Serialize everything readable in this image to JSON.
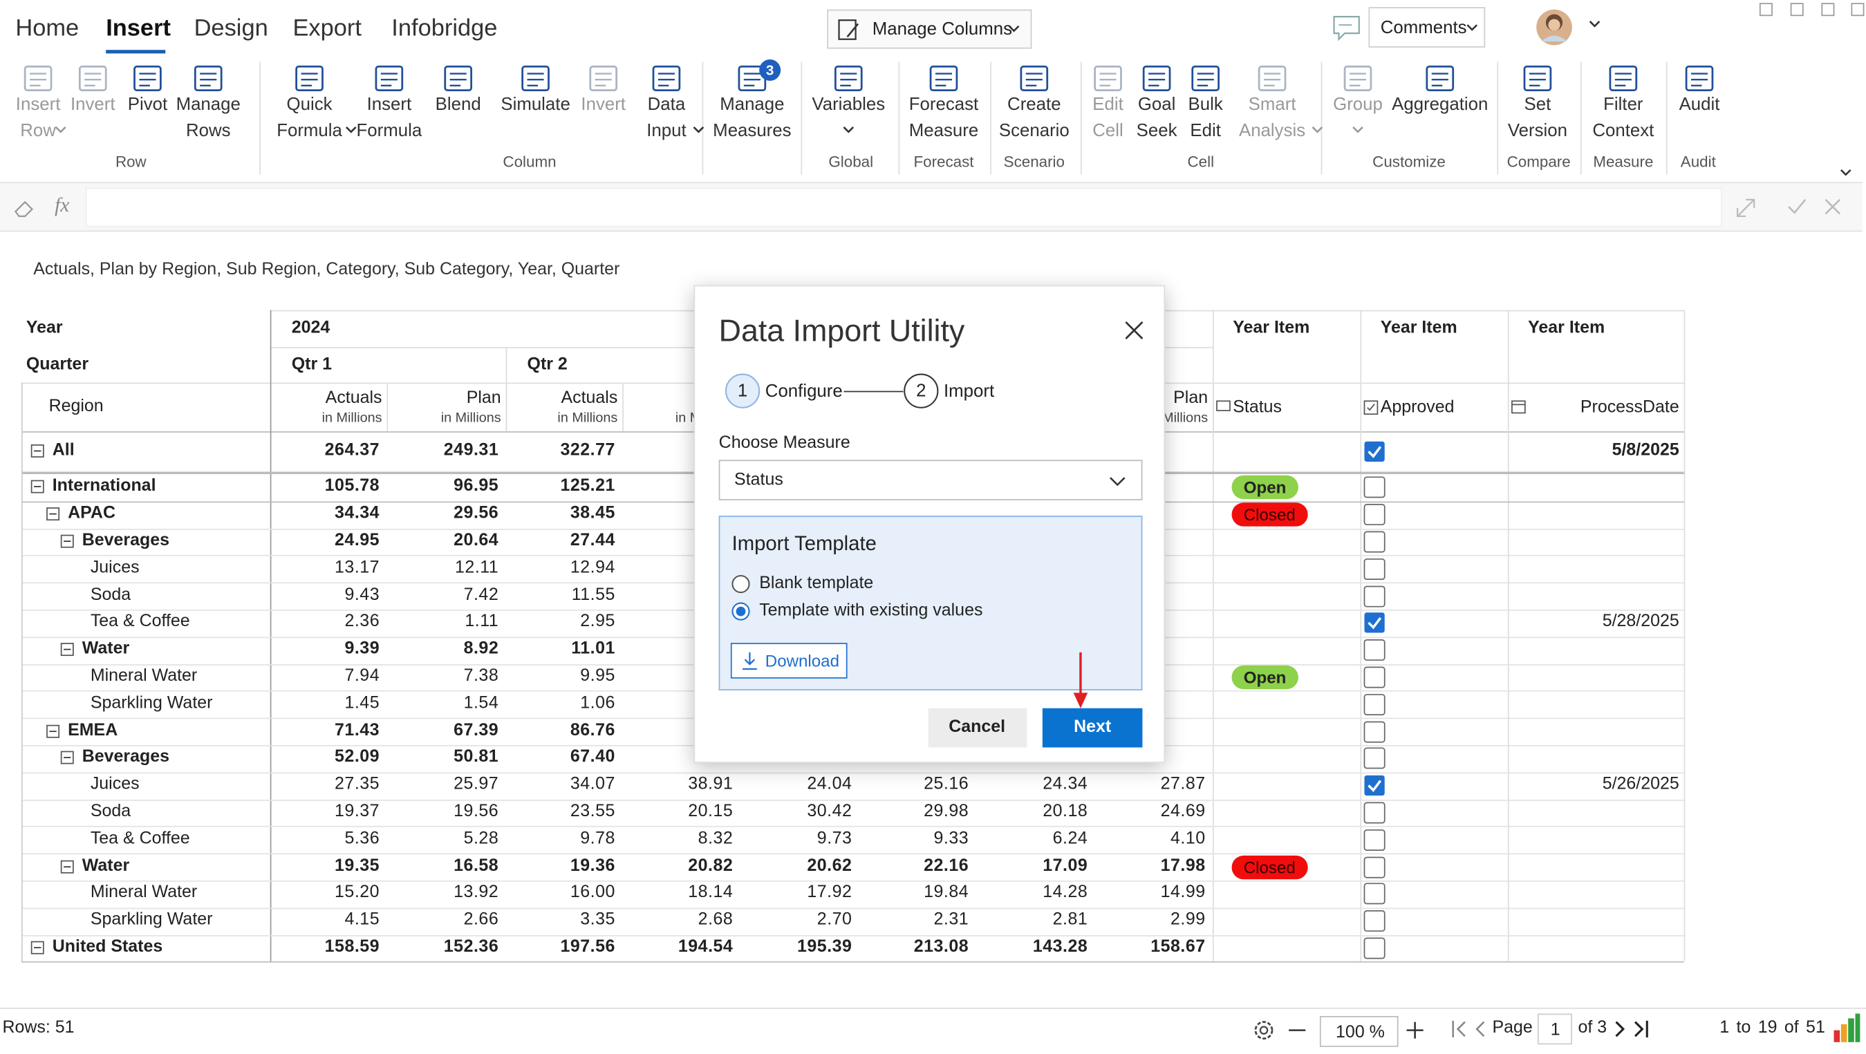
{
  "ribbon": {
    "tabs": [
      "Home",
      "Insert",
      "Design",
      "Export",
      "Infobridge"
    ],
    "active_tab": 1,
    "manage_columns": "Manage Columns",
    "comments": "Comments",
    "groups": [
      {
        "label": "Row",
        "buttons": [
          {
            "lines": [
              "Insert",
              "Row"
            ],
            "disabled": true,
            "dropdown": true
          },
          {
            "lines": [
              "Invert"
            ],
            "disabled": true
          },
          {
            "lines": [
              "Pivot"
            ]
          },
          {
            "lines": [
              "Manage",
              "Rows"
            ]
          }
        ]
      },
      {
        "label": "Column",
        "buttons": [
          {
            "lines": [
              "Quick",
              "Formula"
            ],
            "dropdown": true
          },
          {
            "lines": [
              "Insert",
              "Formula"
            ]
          },
          {
            "lines": [
              "Blend"
            ]
          },
          {
            "lines": [
              "Simulate"
            ]
          },
          {
            "lines": [
              "Invert"
            ],
            "disabled": true
          },
          {
            "lines": [
              "Data",
              "Input"
            ],
            "dropdown": true
          }
        ]
      },
      {
        "buttons": [
          {
            "lines": [
              "Manage",
              "Measures"
            ],
            "badge": "3"
          }
        ]
      },
      {
        "label": "Global",
        "buttons": [
          {
            "lines": [
              "Variables"
            ],
            "dropdown": true
          }
        ]
      },
      {
        "label": "Forecast",
        "buttons": [
          {
            "lines": [
              "Forecast",
              "Measure"
            ]
          }
        ]
      },
      {
        "label": "Scenario",
        "buttons": [
          {
            "lines": [
              "Create",
              "Scenario"
            ]
          }
        ]
      },
      {
        "label": "Cell",
        "buttons": [
          {
            "lines": [
              "Edit",
              "Cell"
            ],
            "disabled": true
          },
          {
            "lines": [
              "Goal",
              "Seek"
            ]
          },
          {
            "lines": [
              "Bulk",
              "Edit"
            ]
          },
          {
            "lines": [
              "Smart",
              "Analysis"
            ],
            "disabled": true,
            "dropdown": true
          }
        ]
      },
      {
        "label": "Customize",
        "buttons": [
          {
            "lines": [
              "Group"
            ],
            "disabled": true,
            "dropdown": true
          },
          {
            "lines": [
              "Aggregation"
            ]
          }
        ]
      },
      {
        "label": "Compare",
        "buttons": [
          {
            "lines": [
              "Set",
              "Version"
            ]
          }
        ]
      },
      {
        "label": "Measure",
        "buttons": [
          {
            "lines": [
              "Filter",
              "Context"
            ]
          }
        ]
      },
      {
        "label": "Audit",
        "buttons": [
          {
            "lines": [
              "Audit"
            ]
          }
        ]
      }
    ]
  },
  "formula_bar": {
    "fx": "fx"
  },
  "report_title": "Actuals, Plan by Region, Sub Region, Category, Sub Category, Year, Quarter",
  "table": {
    "year_label": "Year",
    "year": "2024",
    "quarter_label": "Quarter",
    "quarters": [
      "Qtr 1",
      "Qtr 2"
    ],
    "row_header": "Region",
    "measures": [
      {
        "name": "Actuals",
        "unit": "in Millions"
      },
      {
        "name": "Plan",
        "unit": "in Millions"
      }
    ],
    "item_group": "Year Item",
    "items": [
      "Status",
      "Approved",
      "ProcessDate"
    ],
    "rows": [
      {
        "label": "All",
        "level": 0,
        "bold": true,
        "values": [
          "264.37",
          "249.31",
          "322.77",
          null,
          null,
          null,
          null,
          null
        ],
        "approved": true,
        "date": "5/8/2025"
      },
      {
        "label": "International",
        "level": 0,
        "bold": true,
        "values": [
          "105.78",
          "96.95",
          "125.21",
          null,
          null,
          null,
          null,
          null
        ],
        "status": {
          "text": "Open",
          "color": "#8ed14a"
        },
        "approved": false
      },
      {
        "label": "APAC",
        "level": 1,
        "bold": true,
        "values": [
          "34.34",
          "29.56",
          "38.45",
          null,
          null,
          null,
          null,
          null
        ],
        "status": {
          "text": "Closed",
          "color": "#f20d0d"
        },
        "approved": false
      },
      {
        "label": "Beverages",
        "level": 2,
        "bold": true,
        "values": [
          "24.95",
          "20.64",
          "27.44",
          null,
          null,
          null,
          null,
          null
        ],
        "approved": false
      },
      {
        "label": "Juices",
        "level": 3,
        "values": [
          "13.17",
          "12.11",
          "12.94",
          null,
          null,
          null,
          null,
          null
        ],
        "approved": false
      },
      {
        "label": "Soda",
        "level": 3,
        "values": [
          "9.43",
          "7.42",
          "11.55",
          null,
          null,
          null,
          null,
          null
        ],
        "approved": false
      },
      {
        "label": "Tea & Coffee",
        "level": 3,
        "values": [
          "2.36",
          "1.11",
          "2.95",
          null,
          null,
          null,
          null,
          null
        ],
        "approved": true,
        "date": "5/28/2025"
      },
      {
        "label": "Water",
        "level": 2,
        "bold": true,
        "values": [
          "9.39",
          "8.92",
          "11.01",
          null,
          null,
          null,
          null,
          null
        ],
        "approved": false
      },
      {
        "label": "Mineral Water",
        "level": 3,
        "values": [
          "7.94",
          "7.38",
          "9.95",
          null,
          null,
          null,
          null,
          null
        ],
        "status": {
          "text": "Open",
          "color": "#8ed14a"
        },
        "approved": false
      },
      {
        "label": "Sparkling Water",
        "level": 3,
        "values": [
          "1.45",
          "1.54",
          "1.06",
          null,
          null,
          null,
          null,
          null
        ],
        "approved": false
      },
      {
        "label": "EMEA",
        "level": 1,
        "bold": true,
        "values": [
          "71.43",
          "67.39",
          "86.76",
          null,
          null,
          null,
          null,
          null
        ],
        "approved": false
      },
      {
        "label": "Beverages",
        "level": 2,
        "bold": true,
        "values": [
          "52.09",
          "50.81",
          "67.40",
          null,
          null,
          null,
          null,
          null
        ],
        "approved": false
      },
      {
        "label": "Juices",
        "level": 3,
        "values": [
          "27.35",
          "25.97",
          "34.07",
          "38.91",
          "24.04",
          "25.16",
          "24.34",
          "27.87"
        ],
        "approved": true,
        "date": "5/26/2025"
      },
      {
        "label": "Soda",
        "level": 3,
        "values": [
          "19.37",
          "19.56",
          "23.55",
          "20.15",
          "30.42",
          "29.98",
          "20.18",
          "24.69"
        ],
        "approved": false
      },
      {
        "label": "Tea & Coffee",
        "level": 3,
        "values": [
          "5.36",
          "5.28",
          "9.78",
          "8.32",
          "9.73",
          "9.33",
          "6.24",
          "4.10"
        ],
        "approved": false
      },
      {
        "label": "Water",
        "level": 2,
        "bold": true,
        "values": [
          "19.35",
          "16.58",
          "19.36",
          "20.82",
          "20.62",
          "22.16",
          "17.09",
          "17.98"
        ],
        "status": {
          "text": "Closed",
          "color": "#f20d0d"
        },
        "approved": false
      },
      {
        "label": "Mineral Water",
        "level": 3,
        "values": [
          "15.20",
          "13.92",
          "16.00",
          "18.14",
          "17.92",
          "19.84",
          "14.28",
          "14.99"
        ],
        "approved": false
      },
      {
        "label": "Sparkling Water",
        "level": 3,
        "values": [
          "4.15",
          "2.66",
          "3.35",
          "2.68",
          "2.70",
          "2.31",
          "2.81",
          "2.99"
        ],
        "approved": false
      },
      {
        "label": "United States",
        "level": 0,
        "bold": true,
        "values": [
          "158.59",
          "152.36",
          "197.56",
          "194.54",
          "195.39",
          "213.08",
          "143.28",
          "158.67"
        ],
        "approved": false
      }
    ]
  },
  "dialog": {
    "title": "Data Import Utility",
    "steps": [
      {
        "number": "1",
        "label": "Configure"
      },
      {
        "number": "2",
        "label": "Import"
      }
    ],
    "measure_label": "Choose Measure",
    "measure": "Status",
    "template_title": "Import Template",
    "options": [
      "Blank template",
      "Template with existing values"
    ],
    "selected_option": 1,
    "download": "Download",
    "cancel": "Cancel",
    "next": "Next"
  },
  "footer": {
    "rows": "Rows: 51",
    "zoom": "100 %",
    "page_label": "Page",
    "page": "1",
    "page_of": "of 3",
    "range": "1 to 19 of 51"
  }
}
